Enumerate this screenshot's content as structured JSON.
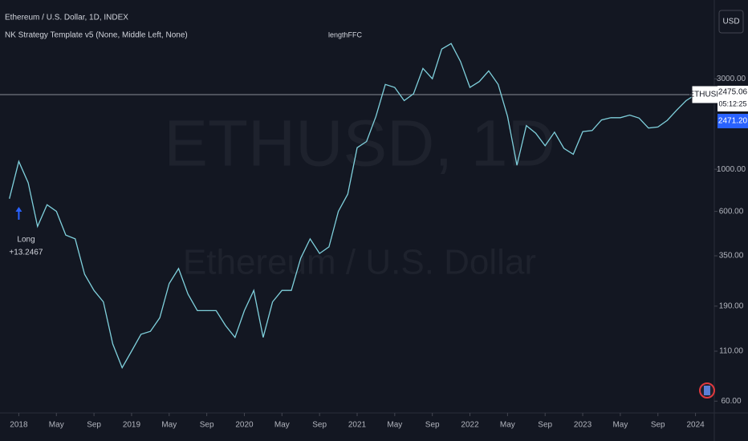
{
  "header": {
    "symbol_info": "Ethereum / U.S. Dollar, 1D, INDEX",
    "indicator": "NK Strategy Template v5 (None, Middle Left, None)",
    "overlay_text": "lengthFFC",
    "currency_button": "USD"
  },
  "watermark": {
    "symbol": "ETHUSD, 1D",
    "name": "Ethereum / U.S. Dollar"
  },
  "price_tags": {
    "symbol": "ETHUSD",
    "last": {
      "value": 2475.06,
      "label": "2475.06"
    },
    "countdown": "05:12:25",
    "other": {
      "value": 2471.2,
      "label": "2471.20"
    }
  },
  "chart_data": {
    "type": "line",
    "log_scale": true,
    "color": "#7fd0dc",
    "x": [
      "2017-12",
      "2018-01",
      "2018-02",
      "2018-03",
      "2018-04",
      "2018-05",
      "2018-06",
      "2018-07",
      "2018-08",
      "2018-09",
      "2018-10",
      "2018-11",
      "2018-12",
      "2019-01",
      "2019-02",
      "2019-03",
      "2019-04",
      "2019-05",
      "2019-06",
      "2019-07",
      "2019-08",
      "2019-09",
      "2019-10",
      "2019-11",
      "2019-12",
      "2020-01",
      "2020-02",
      "2020-03",
      "2020-04",
      "2020-05",
      "2020-06",
      "2020-07",
      "2020-08",
      "2020-09",
      "2020-10",
      "2020-11",
      "2020-12",
      "2021-01",
      "2021-02",
      "2021-03",
      "2021-04",
      "2021-05",
      "2021-06",
      "2021-07",
      "2021-08",
      "2021-09",
      "2021-10",
      "2021-11",
      "2021-12",
      "2022-01",
      "2022-02",
      "2022-03",
      "2022-04",
      "2022-05",
      "2022-06",
      "2022-07",
      "2022-08",
      "2022-09",
      "2022-10",
      "2022-11",
      "2022-12",
      "2023-01",
      "2023-02",
      "2023-03",
      "2023-04",
      "2023-05",
      "2023-06",
      "2023-07",
      "2023-08",
      "2023-09",
      "2023-10",
      "2023-11",
      "2023-12",
      "2024-01"
    ],
    "values": [
      700,
      1100,
      850,
      500,
      650,
      600,
      450,
      430,
      280,
      230,
      200,
      120,
      90,
      110,
      135,
      140,
      165,
      250,
      300,
      220,
      180,
      180,
      180,
      150,
      130,
      180,
      230,
      130,
      200,
      230,
      230,
      340,
      430,
      360,
      390,
      600,
      740,
      1300,
      1400,
      1900,
      2800,
      2700,
      2300,
      2500,
      3400,
      3000,
      4300,
      4600,
      3700,
      2700,
      2900,
      3300,
      2800,
      1900,
      1050,
      1700,
      1550,
      1330,
      1570,
      1290,
      1200,
      1580,
      1600,
      1820,
      1870,
      1870,
      1930,
      1860,
      1650,
      1670,
      1810,
      2050,
      2300,
      2475
    ],
    "ylim": [
      52,
      7800
    ],
    "yticks": [
      {
        "value": 60,
        "label": "60.00"
      },
      {
        "value": 110,
        "label": "110.00"
      },
      {
        "value": 190,
        "label": "190.00"
      },
      {
        "value": 350,
        "label": "350.00"
      },
      {
        "value": 600,
        "label": "600.00"
      },
      {
        "value": 1000,
        "label": "1000.00"
      },
      {
        "value": 3000,
        "label": "3000.00"
      }
    ],
    "xlim": [
      "2017-11",
      "2024-03"
    ],
    "xticks": [
      {
        "value": "2018-01",
        "label": "2018"
      },
      {
        "value": "2018-05",
        "label": "May"
      },
      {
        "value": "2018-09",
        "label": "Sep"
      },
      {
        "value": "2019-01",
        "label": "2019"
      },
      {
        "value": "2019-05",
        "label": "May"
      },
      {
        "value": "2019-09",
        "label": "Sep"
      },
      {
        "value": "2020-01",
        "label": "2020"
      },
      {
        "value": "2020-05",
        "label": "May"
      },
      {
        "value": "2020-09",
        "label": "Sep"
      },
      {
        "value": "2021-01",
        "label": "2021"
      },
      {
        "value": "2021-05",
        "label": "May"
      },
      {
        "value": "2021-09",
        "label": "Sep"
      },
      {
        "value": "2022-01",
        "label": "2022"
      },
      {
        "value": "2022-05",
        "label": "May"
      },
      {
        "value": "2022-09",
        "label": "Sep"
      },
      {
        "value": "2023-01",
        "label": "2023"
      },
      {
        "value": "2023-05",
        "label": "May"
      },
      {
        "value": "2023-09",
        "label": "Sep"
      },
      {
        "value": "2024-01",
        "label": "2024"
      }
    ],
    "annotations": [
      {
        "x": "2018-01",
        "text": "Long"
      },
      {
        "x": "2018-01",
        "text": "+13.2467"
      }
    ]
  }
}
